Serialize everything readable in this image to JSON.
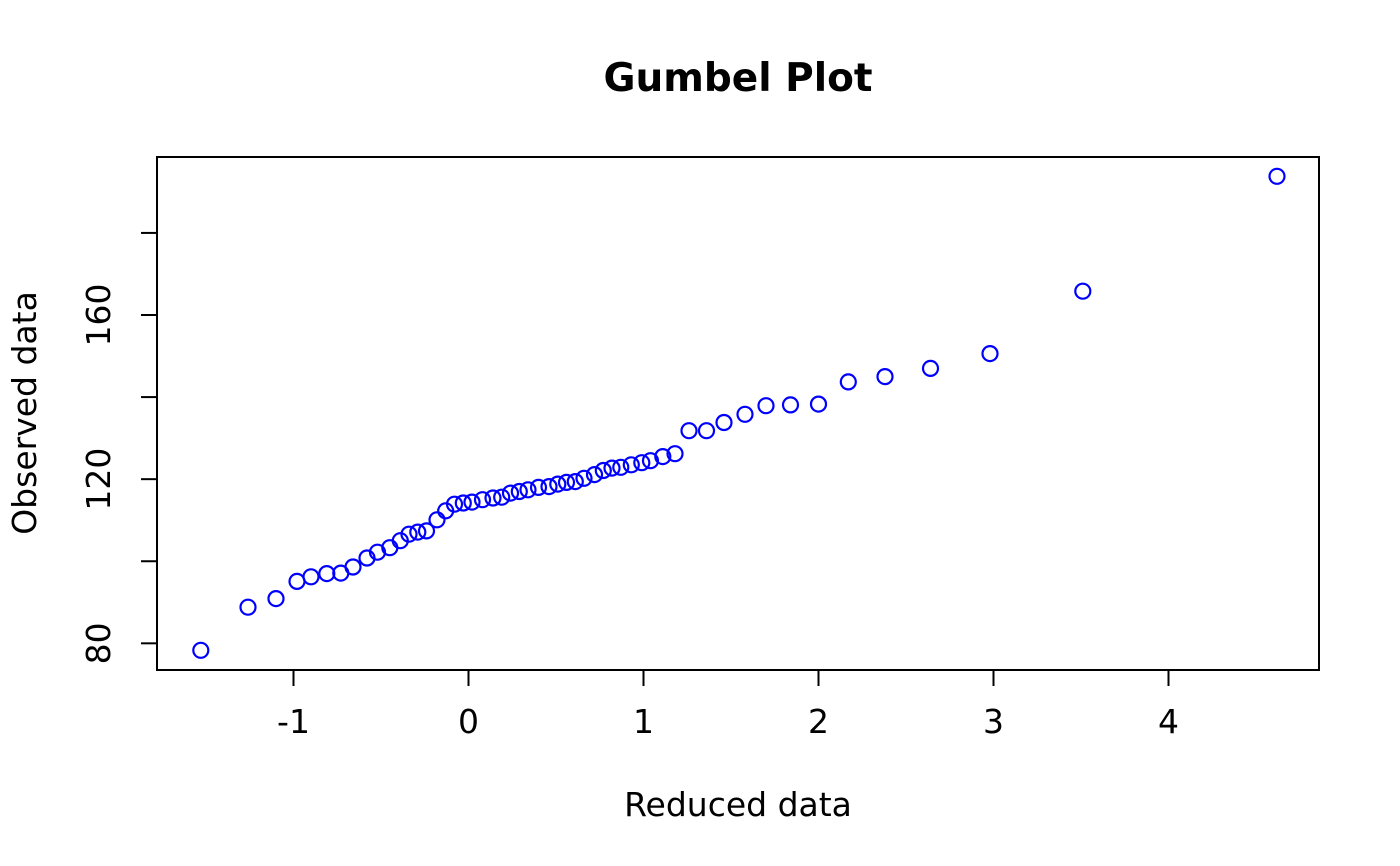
{
  "title": "Gumbel Plot",
  "colors": {
    "background": "#ffffff",
    "axis": "#000000",
    "text": "#000000",
    "point": "#0000ff"
  },
  "chart_data": {
    "type": "scatter",
    "title": "Gumbel Plot",
    "xlabel": "Reduced data",
    "ylabel": "Observed data",
    "xlim": [
      -1.78,
      4.86
    ],
    "ylim": [
      73.5,
      198.5
    ],
    "grid": false,
    "legend": null,
    "marker": {
      "shape": "open-circle",
      "color": "#0000ff",
      "radius_px": 7.5,
      "stroke_px": 2.2
    },
    "x_ticks": [
      {
        "v": -1,
        "label": "-1"
      },
      {
        "v": 0,
        "label": "0"
      },
      {
        "v": 1,
        "label": "1"
      },
      {
        "v": 2,
        "label": "2"
      },
      {
        "v": 3,
        "label": "3"
      },
      {
        "v": 4,
        "label": "4"
      }
    ],
    "y_ticks": [
      {
        "v": 80,
        "label": "80"
      },
      {
        "v": 100,
        "label": ""
      },
      {
        "v": 120,
        "label": "120"
      },
      {
        "v": 140,
        "label": ""
      },
      {
        "v": 160,
        "label": "160"
      },
      {
        "v": 180,
        "label": ""
      }
    ],
    "points": [
      [
        -1.53,
        78.3
      ],
      [
        -1.26,
        88.8
      ],
      [
        -1.1,
        90.9
      ],
      [
        -0.98,
        95.1
      ],
      [
        -0.9,
        96.2
      ],
      [
        -0.81,
        97.0
      ],
      [
        -0.73,
        97.1
      ],
      [
        -0.66,
        98.6
      ],
      [
        -0.58,
        100.8
      ],
      [
        -0.52,
        102.2
      ],
      [
        -0.45,
        103.3
      ],
      [
        -0.39,
        105.0
      ],
      [
        -0.34,
        106.6
      ],
      [
        -0.29,
        107.1
      ],
      [
        -0.24,
        107.4
      ],
      [
        -0.18,
        110.1
      ],
      [
        -0.13,
        112.3
      ],
      [
        -0.08,
        113.9
      ],
      [
        -0.03,
        114.2
      ],
      [
        0.02,
        114.4
      ],
      [
        0.08,
        115.0
      ],
      [
        0.14,
        115.4
      ],
      [
        0.19,
        115.6
      ],
      [
        0.24,
        116.6
      ],
      [
        0.29,
        117.0
      ],
      [
        0.34,
        117.4
      ],
      [
        0.4,
        118.0
      ],
      [
        0.46,
        118.2
      ],
      [
        0.51,
        118.8
      ],
      [
        0.56,
        119.2
      ],
      [
        0.61,
        119.4
      ],
      [
        0.66,
        120.2
      ],
      [
        0.72,
        121.1
      ],
      [
        0.77,
        122.1
      ],
      [
        0.82,
        122.7
      ],
      [
        0.87,
        122.9
      ],
      [
        0.93,
        123.5
      ],
      [
        0.99,
        124.0
      ],
      [
        1.04,
        124.5
      ],
      [
        1.11,
        125.5
      ],
      [
        1.18,
        126.2
      ],
      [
        1.26,
        131.8
      ],
      [
        1.36,
        131.8
      ],
      [
        1.46,
        133.8
      ],
      [
        1.58,
        135.8
      ],
      [
        1.7,
        137.9
      ],
      [
        1.84,
        138.1
      ],
      [
        2.0,
        138.3
      ],
      [
        2.17,
        143.7
      ],
      [
        2.38,
        145.0
      ],
      [
        2.64,
        147.0
      ],
      [
        2.98,
        150.6
      ],
      [
        3.51,
        165.8
      ],
      [
        4.62,
        193.8
      ]
    ]
  }
}
